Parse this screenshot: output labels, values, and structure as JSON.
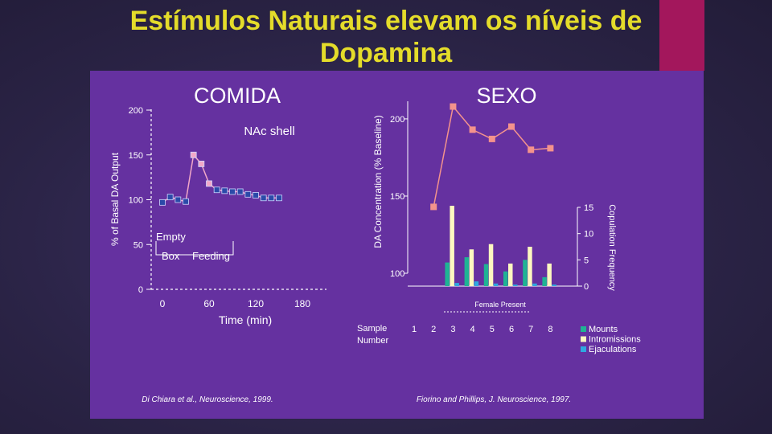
{
  "slide": {
    "title_line1": "Estímulos Naturais elevam os níveis de",
    "title_line2": "Dopamina",
    "colors": {
      "title": "#e4dc2a",
      "panel": "#6531a0",
      "accent": "#a3175c",
      "background": "#2d2648"
    }
  },
  "chart_data": [
    {
      "type": "line",
      "title": "COMIDA",
      "subtitle": "NAc shell",
      "xlabel": "Time (min)",
      "ylabel": "% of Basal DA Output",
      "xticks": [
        "0",
        "60",
        "120",
        "180"
      ],
      "yticks": [
        "0",
        "50",
        "100",
        "150",
        "200"
      ],
      "xlim": [
        -5,
        180
      ],
      "ylim": [
        0,
        200
      ],
      "annotations": [
        "Empty",
        "Box",
        "Feeding"
      ],
      "series": [
        {
          "marker": "square",
          "color": "#2b4aa8",
          "points": [
            [
              0,
              97
            ],
            [
              10,
              103
            ],
            [
              20,
              100
            ],
            [
              30,
              98
            ]
          ]
        },
        {
          "marker": "square",
          "color": "#f2a8c8",
          "points": [
            [
              40,
              150
            ],
            [
              50,
              140
            ],
            [
              60,
              118
            ]
          ]
        },
        {
          "marker": "square",
          "color": "#2b4aa8",
          "points": [
            [
              70,
              111
            ],
            [
              80,
              110
            ],
            [
              90,
              109
            ],
            [
              100,
              109
            ],
            [
              110,
              106
            ],
            [
              120,
              105
            ],
            [
              130,
              102
            ],
            [
              140,
              102
            ],
            [
              150,
              102
            ]
          ]
        }
      ],
      "source": "Di Chiara et al., Neuroscience, 1999."
    },
    {
      "type": "line",
      "title": "SEXO",
      "ylabel": "DA Concentration (% Baseline)",
      "y2label": "Copulation Frequency",
      "yticks": [
        "100",
        "150",
        "200"
      ],
      "y2ticks": [
        "0",
        "5",
        "10",
        "15"
      ],
      "xlabel_note": "Female Present",
      "xlabel": "Sample Number",
      "categories": [
        "1",
        "2",
        "3",
        "4",
        "5",
        "6",
        "7",
        "8"
      ],
      "ylim": [
        100,
        200
      ],
      "y2lim": [
        0,
        15
      ],
      "series": [
        {
          "name": "DA",
          "marker": "square",
          "color": "#f4938c",
          "values": [
            null,
            143,
            208,
            193,
            187,
            195,
            180,
            181
          ]
        }
      ],
      "bar_series": [
        {
          "name": "Mounts",
          "color": "#1fb394",
          "values": [
            null,
            null,
            4.5,
            5.5,
            4.2,
            2.8,
            5,
            1.7
          ]
        },
        {
          "name": "Intromissions",
          "color": "#fdf8c0",
          "values": [
            null,
            null,
            15.3,
            7,
            8,
            4.3,
            7.5,
            4.3
          ]
        },
        {
          "name": "Ejaculations",
          "color": "#30a8e0",
          "values": [
            null,
            null,
            0.6,
            0.9,
            0.5,
            0.3,
            0.5,
            0.3
          ]
        }
      ],
      "source": "Fiorino and Phillips, J. Neuroscience, 1997."
    }
  ]
}
